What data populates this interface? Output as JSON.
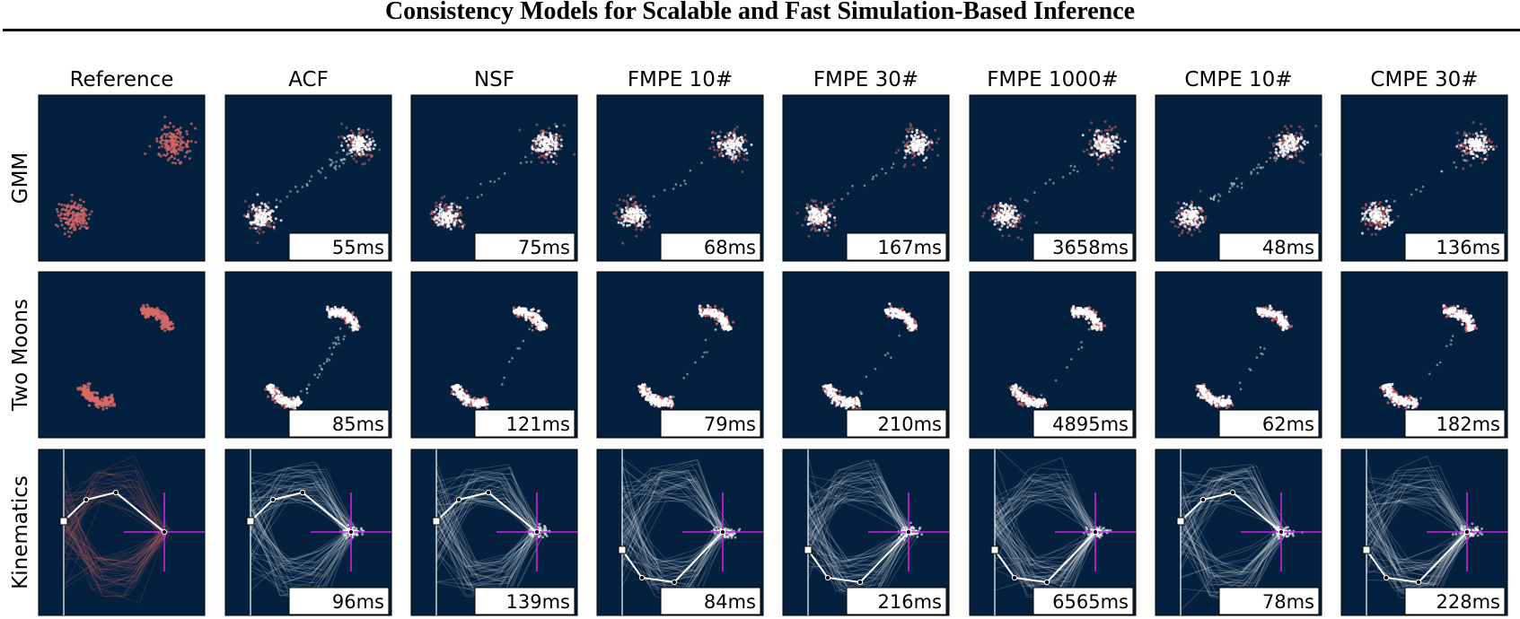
{
  "title": "Consistency Models for Scalable and Fast Simulation-Based Inference",
  "columns": [
    "Reference",
    "ACF",
    "NSF",
    "FMPE 10#",
    "FMPE 30#",
    "FMPE 1000#",
    "CMPE 10#",
    "CMPE 30#"
  ],
  "rows": [
    {
      "label": "GMM",
      "times": [
        "",
        "55ms",
        "75ms",
        "68ms",
        "167ms",
        "3658ms",
        "48ms",
        "136ms"
      ]
    },
    {
      "label": "Two Moons",
      "times": [
        "",
        "85ms",
        "121ms",
        "79ms",
        "210ms",
        "4895ms",
        "62ms",
        "182ms"
      ]
    },
    {
      "label": "Kinematics",
      "times": [
        "",
        "96ms",
        "139ms",
        "84ms",
        "216ms",
        "6565ms",
        "78ms",
        "228ms"
      ]
    }
  ],
  "colors": {
    "panel_background": "#03203f",
    "reference_samples": "#d86a66",
    "model_samples": "#ffffff",
    "target_crosshair": "#d020e0"
  }
}
